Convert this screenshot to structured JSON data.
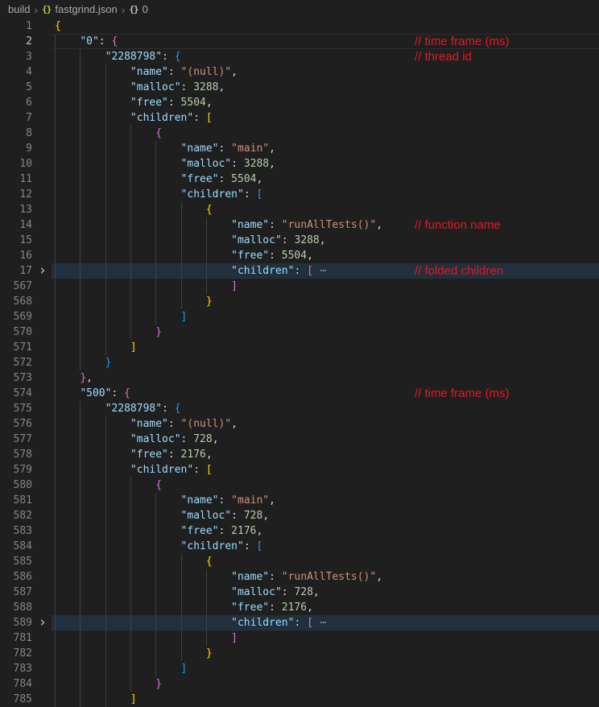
{
  "colors": {
    "bg": "#1f1f1f",
    "gutter_fg": "#858585",
    "gutter_active_fg": "#c6c6c6",
    "key": "#9cdcfe",
    "string": "#ce9178",
    "number": "#b5cea8",
    "punct": "#d4d4d4",
    "bracket1": "#ffd700",
    "bracket2": "#da70d6",
    "bracket3": "#179fff",
    "indent_guide": "#404040",
    "fold_bg": "#22303e",
    "fold_dots": "#8c949c",
    "current_line_border": "#2e2e2e",
    "annotation": "#e01b24",
    "breadcrumb_fg": "#a9a9a9",
    "breadcrumb_sep": "#707070",
    "json_icon": "#cbcb41",
    "object_icon": "#c9c9c9",
    "chevron": "#c5c5c5"
  },
  "breadcrumb": {
    "items": [
      {
        "label": "build"
      },
      {
        "label": "fastgrind.json"
      },
      {
        "label": "0"
      }
    ],
    "separator": "›",
    "braces_glyph": "{}"
  },
  "editor": {
    "file_language": "json",
    "fold_chevron": "›",
    "fold_placeholder": "⋯",
    "lines": [
      {
        "n": 1,
        "i": 0,
        "t": [
          [
            "{",
            "b1"
          ]
        ]
      },
      {
        "n": 2,
        "i": 1,
        "t": [
          [
            "\"0\"",
            "k"
          ],
          [
            ": ",
            "p"
          ],
          [
            "{",
            "b2"
          ]
        ],
        "c": true,
        "a": "// time frame (ms)"
      },
      {
        "n": 3,
        "i": 2,
        "t": [
          [
            "\"2288798\"",
            "k"
          ],
          [
            ": ",
            "p"
          ],
          [
            "{",
            "b3"
          ]
        ],
        "a": "// thread id"
      },
      {
        "n": 4,
        "i": 3,
        "t": [
          [
            "\"name\"",
            "k"
          ],
          [
            ": ",
            "p"
          ],
          [
            "\"(null)\"",
            "s"
          ],
          [
            ",",
            "p"
          ]
        ]
      },
      {
        "n": 5,
        "i": 3,
        "t": [
          [
            "\"malloc\"",
            "k"
          ],
          [
            ": ",
            "p"
          ],
          [
            "3288",
            "num"
          ],
          [
            ",",
            "p"
          ]
        ]
      },
      {
        "n": 6,
        "i": 3,
        "t": [
          [
            "\"free\"",
            "k"
          ],
          [
            ": ",
            "p"
          ],
          [
            "5504",
            "num"
          ],
          [
            ",",
            "p"
          ]
        ]
      },
      {
        "n": 7,
        "i": 3,
        "t": [
          [
            "\"children\"",
            "k"
          ],
          [
            ": ",
            "p"
          ],
          [
            "[",
            "b1"
          ]
        ]
      },
      {
        "n": 8,
        "i": 4,
        "t": [
          [
            "{",
            "b2"
          ]
        ]
      },
      {
        "n": 9,
        "i": 5,
        "t": [
          [
            "\"name\"",
            "k"
          ],
          [
            ": ",
            "p"
          ],
          [
            "\"main\"",
            "s"
          ],
          [
            ",",
            "p"
          ]
        ]
      },
      {
        "n": 10,
        "i": 5,
        "t": [
          [
            "\"malloc\"",
            "k"
          ],
          [
            ": ",
            "p"
          ],
          [
            "3288",
            "num"
          ],
          [
            ",",
            "p"
          ]
        ]
      },
      {
        "n": 11,
        "i": 5,
        "t": [
          [
            "\"free\"",
            "k"
          ],
          [
            ": ",
            "p"
          ],
          [
            "5504",
            "num"
          ],
          [
            ",",
            "p"
          ]
        ]
      },
      {
        "n": 12,
        "i": 5,
        "t": [
          [
            "\"children\"",
            "k"
          ],
          [
            ": ",
            "p"
          ],
          [
            "[",
            "b3"
          ]
        ]
      },
      {
        "n": 13,
        "i": 6,
        "t": [
          [
            "{",
            "b1"
          ]
        ]
      },
      {
        "n": 14,
        "i": 7,
        "t": [
          [
            "\"name\"",
            "k"
          ],
          [
            ": ",
            "p"
          ],
          [
            "\"runAllTests()\"",
            "s"
          ],
          [
            ",",
            "p"
          ]
        ],
        "a": "// function name"
      },
      {
        "n": 15,
        "i": 7,
        "t": [
          [
            "\"malloc\"",
            "k"
          ],
          [
            ": ",
            "p"
          ],
          [
            "3288",
            "num"
          ],
          [
            ",",
            "p"
          ]
        ]
      },
      {
        "n": 16,
        "i": 7,
        "t": [
          [
            "\"free\"",
            "k"
          ],
          [
            ": ",
            "p"
          ],
          [
            "5504",
            "num"
          ],
          [
            ",",
            "p"
          ]
        ]
      },
      {
        "n": 17,
        "i": 7,
        "t": [
          [
            "\"children\"",
            "k"
          ],
          [
            ": ",
            "p"
          ],
          [
            "[",
            "b2"
          ],
          [
            " ⋯",
            "fdots"
          ]
        ],
        "f": true,
        "a": "// folded children"
      },
      {
        "n": 567,
        "i": 7,
        "t": [
          [
            "]",
            "b2"
          ]
        ]
      },
      {
        "n": 568,
        "i": 6,
        "t": [
          [
            "}",
            "b1"
          ]
        ]
      },
      {
        "n": 569,
        "i": 5,
        "t": [
          [
            "]",
            "b3"
          ]
        ]
      },
      {
        "n": 570,
        "i": 4,
        "t": [
          [
            "}",
            "b2"
          ]
        ]
      },
      {
        "n": 571,
        "i": 3,
        "t": [
          [
            "]",
            "b1"
          ]
        ]
      },
      {
        "n": 572,
        "i": 2,
        "t": [
          [
            "}",
            "b3"
          ]
        ]
      },
      {
        "n": 573,
        "i": 1,
        "t": [
          [
            "}",
            "b2"
          ],
          [
            ",",
            "p"
          ]
        ]
      },
      {
        "n": 574,
        "i": 1,
        "t": [
          [
            "\"500\"",
            "k"
          ],
          [
            ": ",
            "p"
          ],
          [
            "{",
            "b2"
          ]
        ],
        "a": "// time frame (ms)"
      },
      {
        "n": 575,
        "i": 2,
        "t": [
          [
            "\"2288798\"",
            "k"
          ],
          [
            ": ",
            "p"
          ],
          [
            "{",
            "b3"
          ]
        ]
      },
      {
        "n": 576,
        "i": 3,
        "t": [
          [
            "\"name\"",
            "k"
          ],
          [
            ": ",
            "p"
          ],
          [
            "\"(null)\"",
            "s"
          ],
          [
            ",",
            "p"
          ]
        ]
      },
      {
        "n": 577,
        "i": 3,
        "t": [
          [
            "\"malloc\"",
            "k"
          ],
          [
            ": ",
            "p"
          ],
          [
            "728",
            "num"
          ],
          [
            ",",
            "p"
          ]
        ]
      },
      {
        "n": 578,
        "i": 3,
        "t": [
          [
            "\"free\"",
            "k"
          ],
          [
            ": ",
            "p"
          ],
          [
            "2176",
            "num"
          ],
          [
            ",",
            "p"
          ]
        ]
      },
      {
        "n": 579,
        "i": 3,
        "t": [
          [
            "\"children\"",
            "k"
          ],
          [
            ": ",
            "p"
          ],
          [
            "[",
            "b1"
          ]
        ]
      },
      {
        "n": 580,
        "i": 4,
        "t": [
          [
            "{",
            "b2"
          ]
        ]
      },
      {
        "n": 581,
        "i": 5,
        "t": [
          [
            "\"name\"",
            "k"
          ],
          [
            ": ",
            "p"
          ],
          [
            "\"main\"",
            "s"
          ],
          [
            ",",
            "p"
          ]
        ]
      },
      {
        "n": 582,
        "i": 5,
        "t": [
          [
            "\"malloc\"",
            "k"
          ],
          [
            ": ",
            "p"
          ],
          [
            "728",
            "num"
          ],
          [
            ",",
            "p"
          ]
        ]
      },
      {
        "n": 583,
        "i": 5,
        "t": [
          [
            "\"free\"",
            "k"
          ],
          [
            ": ",
            "p"
          ],
          [
            "2176",
            "num"
          ],
          [
            ",",
            "p"
          ]
        ]
      },
      {
        "n": 584,
        "i": 5,
        "t": [
          [
            "\"children\"",
            "k"
          ],
          [
            ": ",
            "p"
          ],
          [
            "[",
            "b3"
          ]
        ]
      },
      {
        "n": 585,
        "i": 6,
        "t": [
          [
            "{",
            "b1"
          ]
        ]
      },
      {
        "n": 586,
        "i": 7,
        "t": [
          [
            "\"name\"",
            "k"
          ],
          [
            ": ",
            "p"
          ],
          [
            "\"runAllTests()\"",
            "s"
          ],
          [
            ",",
            "p"
          ]
        ]
      },
      {
        "n": 587,
        "i": 7,
        "t": [
          [
            "\"malloc\"",
            "k"
          ],
          [
            ": ",
            "p"
          ],
          [
            "728",
            "num"
          ],
          [
            ",",
            "p"
          ]
        ]
      },
      {
        "n": 588,
        "i": 7,
        "t": [
          [
            "\"free\"",
            "k"
          ],
          [
            ": ",
            "p"
          ],
          [
            "2176",
            "num"
          ],
          [
            ",",
            "p"
          ]
        ]
      },
      {
        "n": 589,
        "i": 7,
        "t": [
          [
            "\"children\"",
            "k"
          ],
          [
            ": ",
            "p"
          ],
          [
            "[",
            "b2"
          ],
          [
            " ⋯",
            "fdots"
          ]
        ],
        "f": true
      },
      {
        "n": 781,
        "i": 7,
        "t": [
          [
            "]",
            "b2"
          ]
        ]
      },
      {
        "n": 782,
        "i": 6,
        "t": [
          [
            "}",
            "b1"
          ]
        ]
      },
      {
        "n": 783,
        "i": 5,
        "t": [
          [
            "]",
            "b3"
          ]
        ]
      },
      {
        "n": 784,
        "i": 4,
        "t": [
          [
            "}",
            "b2"
          ]
        ]
      },
      {
        "n": 785,
        "i": 3,
        "t": [
          [
            "]",
            "b1"
          ]
        ]
      }
    ]
  }
}
